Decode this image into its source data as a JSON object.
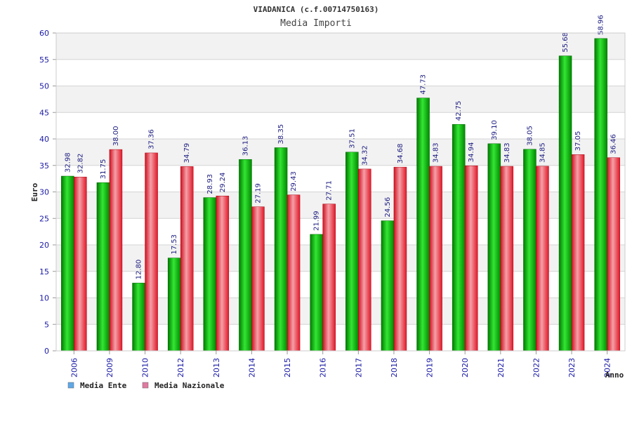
{
  "chart_data": {
    "type": "bar",
    "title": "VIADANICA (c.f.00714750163)",
    "subtitle": "Media Importi",
    "xlabel": "Anno",
    "ylabel": "Euro",
    "ylim": [
      0,
      60
    ],
    "yticks": [
      0,
      5,
      10,
      15,
      20,
      25,
      30,
      35,
      40,
      45,
      50,
      55,
      60
    ],
    "grid": true,
    "legend_position": "bottom-left",
    "categories": [
      "2006",
      "2009",
      "2010",
      "2012",
      "2013",
      "2014",
      "2015",
      "2016",
      "2017",
      "2018",
      "2019",
      "2020",
      "2021",
      "2022",
      "2023",
      "2024"
    ],
    "series": [
      {
        "name": "Media Ente",
        "color": "#00b300",
        "legend_color": "#5fa8e8",
        "values": [
          32.98,
          31.75,
          12.8,
          17.53,
          28.93,
          36.13,
          38.35,
          21.99,
          37.51,
          24.56,
          47.73,
          42.75,
          39.1,
          38.05,
          55.68,
          58.96
        ],
        "labels": [
          "32.98",
          "31.75",
          "12.80",
          "17.53",
          "28.93",
          "36.13",
          "38.35",
          "21.99",
          "37.51",
          "24.56",
          "47.73",
          "42.75",
          "39.10",
          "38.05",
          "55.68",
          "58.96"
        ]
      },
      {
        "name": "Media Nazionale",
        "color": "#e8202a",
        "legend_color": "#e07aa0",
        "values": [
          32.82,
          38.0,
          37.36,
          34.79,
          29.24,
          27.19,
          29.43,
          27.71,
          34.32,
          34.68,
          34.83,
          34.94,
          34.83,
          34.85,
          37.05,
          36.46
        ],
        "labels": [
          "32.82",
          "38.00",
          "37.36",
          "34.79",
          "29.24",
          "27.19",
          "29.43",
          "27.71",
          "34.32",
          "34.68",
          "34.83",
          "34.94",
          "34.83",
          "34.85",
          "37.05",
          "36.46"
        ]
      }
    ]
  }
}
